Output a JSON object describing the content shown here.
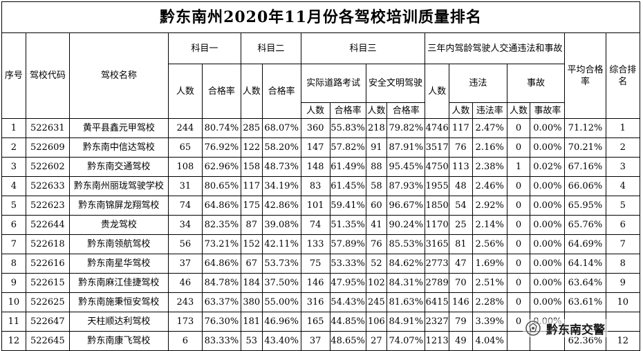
{
  "title": "黔东南州2020年11月份各驾校培训质量排名",
  "headers": {
    "seq": "序号",
    "code": "驾校代码",
    "name": "驾校名称",
    "k1": "科目一",
    "k2": "科目二",
    "k3": "科目三",
    "k3_road": "实际道路考试",
    "k3_civil": "安全文明驾驶",
    "acc_group": "三年内驾龄驾驶人交通违法和事故",
    "violation": "违法",
    "accident": "事故",
    "count": "人数",
    "pass_rate": "合格率",
    "violation_rate": "违法率",
    "accident_rate": "事故率",
    "avg_rate": "平均合格率",
    "rank": "综合排名"
  },
  "rows": [
    {
      "seq": "1",
      "code": "522631",
      "name": "黄平县鑫元甲驾校",
      "k1n": "244",
      "k1r": "80.74%",
      "k2n": "285",
      "k2r": "68.07%",
      "k3an": "360",
      "k3ar": "55.83%",
      "k3bn": "218",
      "k3br": "79.82%",
      "pn": "4746",
      "vn": "117",
      "vr": "2.47%",
      "an": "0",
      "ar": "0.00%",
      "avg": "71.12%",
      "rank": "1"
    },
    {
      "seq": "2",
      "code": "522609",
      "name": "黔东南中信达驾校",
      "k1n": "65",
      "k1r": "76.92%",
      "k2n": "122",
      "k2r": "58.20%",
      "k3an": "147",
      "k3ar": "57.82%",
      "k3bn": "91",
      "k3br": "87.91%",
      "pn": "3517",
      "vn": "76",
      "vr": "2.16%",
      "an": "0",
      "ar": "0.00%",
      "avg": "70.21%",
      "rank": "2"
    },
    {
      "seq": "3",
      "code": "522602",
      "name": "黔东南交通驾校",
      "k1n": "108",
      "k1r": "62.96%",
      "k2n": "158",
      "k2r": "48.73%",
      "k3an": "148",
      "k3ar": "61.49%",
      "k3bn": "88",
      "k3br": "95.45%",
      "pn": "4750",
      "vn": "113",
      "vr": "2.38%",
      "an": "1",
      "ar": "0.02%",
      "avg": "67.16%",
      "rank": "3"
    },
    {
      "seq": "4",
      "code": "522633",
      "name": "黔东南州丽珑驾驶学校",
      "k1n": "31",
      "k1r": "80.65%",
      "k2n": "117",
      "k2r": "34.19%",
      "k3an": "83",
      "k3ar": "61.45%",
      "k3bn": "58",
      "k3br": "87.93%",
      "pn": "1955",
      "vn": "48",
      "vr": "2.46%",
      "an": "0",
      "ar": "0.00%",
      "avg": "66.06%",
      "rank": "4"
    },
    {
      "seq": "5",
      "code": "522623",
      "name": "黔东南锦屏龙翔驾校",
      "k1n": "74",
      "k1r": "64.86%",
      "k2n": "175",
      "k2r": "42.86%",
      "k3an": "101",
      "k3ar": "59.41%",
      "k3bn": "60",
      "k3br": "96.67%",
      "pn": "1850",
      "vn": "54",
      "vr": "2.92%",
      "an": "0",
      "ar": "0.00%",
      "avg": "65.95%",
      "rank": "5"
    },
    {
      "seq": "6",
      "code": "522644",
      "name": "贵龙驾校",
      "k1n": "34",
      "k1r": "82.35%",
      "k2n": "87",
      "k2r": "39.08%",
      "k3an": "74",
      "k3ar": "51.35%",
      "k3bn": "41",
      "k3br": "90.24%",
      "pn": "1170",
      "vn": "25",
      "vr": "2.14%",
      "an": "0",
      "ar": "0.00%",
      "avg": "65.76%",
      "rank": "6"
    },
    {
      "seq": "7",
      "code": "522618",
      "name": "黔东南领航驾校",
      "k1n": "56",
      "k1r": "73.21%",
      "k2n": "152",
      "k2r": "42.11%",
      "k3an": "133",
      "k3ar": "57.89%",
      "k3bn": "76",
      "k3br": "85.53%",
      "pn": "3165",
      "vn": "81",
      "vr": "2.56%",
      "an": "0",
      "ar": "0.00%",
      "avg": "64.69%",
      "rank": "7"
    },
    {
      "seq": "8",
      "code": "522616",
      "name": "黔东南星华驾校",
      "k1n": "37",
      "k1r": "64.86%",
      "k2n": "67",
      "k2r": "53.73%",
      "k3an": "75",
      "k3ar": "53.33%",
      "k3bn": "52",
      "k3br": "84.62%",
      "pn": "2773",
      "vn": "47",
      "vr": "1.69%",
      "an": "0",
      "ar": "0.00%",
      "avg": "64.14%",
      "rank": "8"
    },
    {
      "seq": "9",
      "code": "522615",
      "name": "黔东南麻江佳捷驾校",
      "k1n": "46",
      "k1r": "84.78%",
      "k2n": "184",
      "k2r": "37.50%",
      "k3an": "146",
      "k3ar": "47.95%",
      "k3bn": "102",
      "k3br": "84.31%",
      "pn": "2789",
      "vn": "70",
      "vr": "2.51%",
      "an": "0",
      "ar": "0.00%",
      "avg": "63.64%",
      "rank": "9"
    },
    {
      "seq": "10",
      "code": "522625",
      "name": "黔东南施秉恒安驾校",
      "k1n": "243",
      "k1r": "63.37%",
      "k2n": "380",
      "k2r": "55.00%",
      "k3an": "316",
      "k3ar": "54.43%",
      "k3bn": "245",
      "k3br": "81.63%",
      "pn": "6415",
      "vn": "146",
      "vr": "2.28%",
      "an": "0",
      "ar": "0.00%",
      "avg": "63.61%",
      "rank": "10"
    },
    {
      "seq": "11",
      "code": "522647",
      "name": "天柱顺达利驾校",
      "k1n": "173",
      "k1r": "76.30%",
      "k2n": "181",
      "k2r": "46.96%",
      "k3an": "165",
      "k3ar": "44.85%",
      "k3bn": "106",
      "k3br": "84.91%",
      "pn": "2327",
      "vn": "79",
      "vr": "3.39%",
      "an": "0",
      "ar": "0.00%",
      "avg": "",
      "rank": ""
    },
    {
      "seq": "12",
      "code": "522645",
      "name": "黔东南康飞驾校",
      "k1n": "6",
      "k1r": "83.33%",
      "k2n": "53",
      "k2r": "43.40%",
      "k3an": "37",
      "k3ar": "48.65%",
      "k3bn": "27",
      "k3br": "74.07%",
      "pn": "1213",
      "vn": "49",
      "vr": "4.04%",
      "an": "",
      "ar": "",
      "avg": "62.36%",
      "rank": "12"
    }
  ],
  "watermark": {
    "text": "黔东南交警",
    "logo_icon": "police-badge-logo-icon"
  }
}
